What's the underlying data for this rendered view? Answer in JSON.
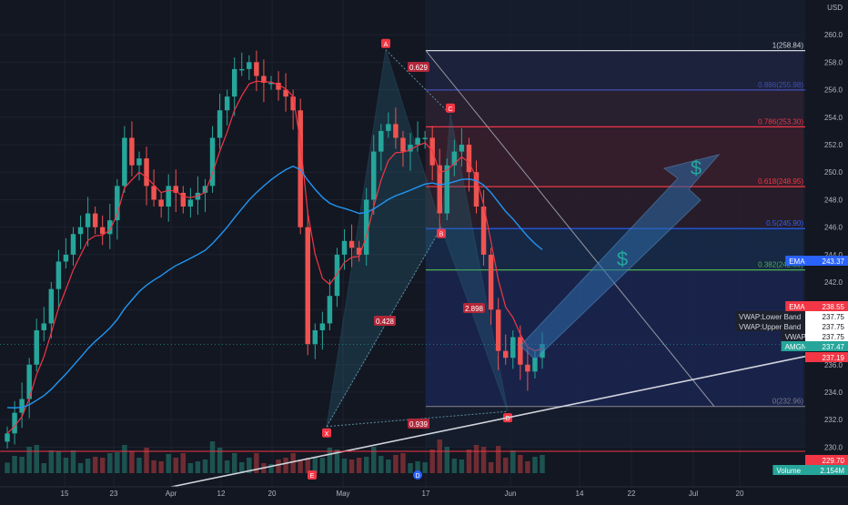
{
  "chart_data": {
    "type": "candlestick",
    "ticker": "AMGN",
    "currency_label": "USD",
    "ylim": [
      229.3,
      261.2
    ],
    "y_ticks": [
      260.0,
      258.0,
      256.0,
      254.0,
      252.0,
      250.0,
      248.0,
      246.0,
      244.0,
      242.0,
      240.0,
      238.0,
      236.0,
      234.0,
      232.0,
      230.0
    ],
    "x_ticks": [
      "15",
      "23",
      "Apr",
      "12",
      "20",
      "May",
      "17",
      "Jun",
      "14",
      "22",
      "Jul",
      "20"
    ],
    "grid": true,
    "candles_close_path": [
      231.0,
      232.5,
      233.5,
      236.0,
      238.5,
      239.0,
      241.5,
      243.5,
      244.0,
      245.5,
      246.0,
      247.0,
      246.0,
      245.5,
      246.5,
      249.0,
      252.5,
      250.5,
      251.0,
      249.0,
      248.0,
      247.5,
      249.0,
      248.5,
      247.5,
      248.0,
      248.5,
      249.0,
      252.5,
      254.5,
      255.5,
      257.5,
      257.5,
      258.0,
      257.0,
      256.5,
      256.5,
      256.0,
      255.5,
      254.5,
      246.0,
      237.5,
      238.5,
      239.0,
      241.0,
      244.0,
      245.0,
      244.5,
      244.0,
      248.0,
      251.5,
      253.0,
      253.5,
      252.5,
      251.5,
      252.0,
      252.5,
      252.5,
      250.5,
      247.0,
      250.5,
      251.5,
      252.0,
      250.0,
      247.5,
      244.0,
      240.0,
      237.0,
      236.5,
      238.0,
      236.0,
      235.5,
      236.5,
      237.5
    ],
    "fibonacci_levels": [
      {
        "label": "1(258.84)",
        "value": 258.84,
        "color": "#d1d4dc"
      },
      {
        "label": "0.886(255.98)",
        "value": 255.98,
        "color": "#3f51b5"
      },
      {
        "label": "0.786(253.30)",
        "value": 253.3,
        "color": "#f23645"
      },
      {
        "label": "0.618(248.95)",
        "value": 248.95,
        "color": "#f23645"
      },
      {
        "label": "0.5(245.90)",
        "value": 245.9,
        "color": "#2962ff"
      },
      {
        "label": "0.382(242.89)",
        "value": 242.89,
        "color": "#4caf50"
      },
      {
        "label": "0(232.96)",
        "value": 232.96,
        "color": "#787b86"
      }
    ],
    "harmonic_points": [
      {
        "label": "X",
        "value": 231.5
      },
      {
        "label": "A",
        "value": 258.9
      },
      {
        "label": "B",
        "value": 246.0
      },
      {
        "label": "C",
        "value": 254.2
      },
      {
        "label": "D",
        "value": 232.6
      }
    ],
    "harmonic_ratios": [
      "0.629",
      "0.428",
      "2.898",
      "0.939"
    ],
    "price_labels": [
      {
        "label": "EMA",
        "value": "243.37",
        "color": "#2962ff",
        "price": 243.37
      },
      {
        "label": "EMA",
        "value": "238.55",
        "color": "#f23645",
        "price": 238.55
      },
      {
        "label": "VWAP:Lower Band",
        "value": "237.75",
        "color": "#131722",
        "price": 237.75
      },
      {
        "label": "VWAP:Upper Band",
        "value": "237.75",
        "color": "#131722",
        "price": 237.75
      },
      {
        "label": "VWAP",
        "value": "237.75",
        "color": "#131722",
        "price": 237.75
      },
      {
        "label": "AMGN",
        "value": "237.47",
        "color": "#26a69a",
        "price": 237.47
      },
      {
        "label": "",
        "value": "237.19",
        "color": "#f23645",
        "price": 237.19
      },
      {
        "label": "",
        "value": "229.70",
        "color": "#f23645",
        "price": 229.7
      },
      {
        "label": "Volume",
        "value": "2.154M",
        "color": "#26a69a",
        "price": null
      }
    ],
    "annotations": [
      "$",
      "$"
    ],
    "event_markers": [
      "E",
      "D"
    ]
  }
}
